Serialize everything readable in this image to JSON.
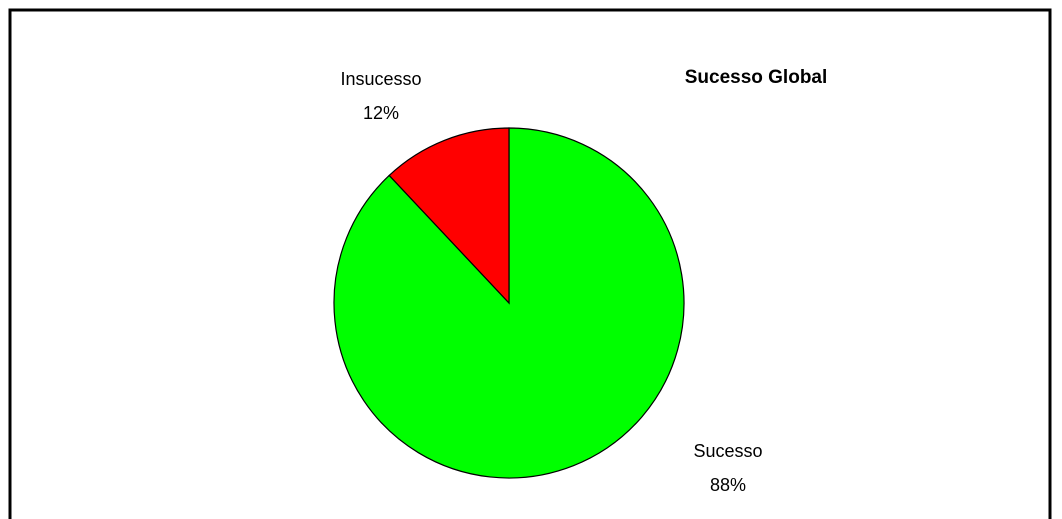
{
  "chart_data": {
    "type": "pie",
    "title": "Sucesso Global",
    "categories": [
      "Sucesso",
      "Insucesso"
    ],
    "values": [
      88,
      12
    ],
    "value_labels": [
      "88%",
      "12%"
    ],
    "colors": [
      "#00ff00",
      "#ff0000"
    ]
  }
}
